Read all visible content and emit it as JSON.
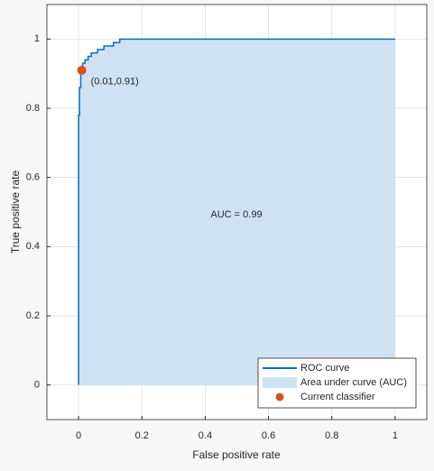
{
  "chart_data": {
    "type": "roc",
    "xlabel": "False positive rate",
    "ylabel": "True positive rate",
    "xlim": [
      -0.1,
      1.1
    ],
    "ylim": [
      -0.1,
      1.1
    ],
    "xticks": [
      0,
      0.2,
      0.4,
      0.6,
      0.8,
      1
    ],
    "yticks": [
      0,
      0.2,
      0.4,
      0.6,
      0.8,
      1
    ],
    "grid": true,
    "legend_position": "southeast",
    "series": [
      {
        "name": "ROC curve",
        "color": "#0072bd",
        "x": [
          0,
          0,
          0.003,
          0.003,
          0.007,
          0.007,
          0.013,
          0.013,
          0.02,
          0.02,
          0.03,
          0.03,
          0.04,
          0.04,
          0.06,
          0.06,
          0.08,
          0.08,
          0.11,
          0.11,
          0.13,
          0.13,
          1
        ],
        "values": [
          0,
          0.78,
          0.78,
          0.86,
          0.86,
          0.91,
          0.91,
          0.93,
          0.93,
          0.94,
          0.94,
          0.95,
          0.95,
          0.96,
          0.96,
          0.97,
          0.97,
          0.98,
          0.98,
          0.99,
          0.99,
          1,
          1
        ]
      }
    ],
    "area": {
      "name": "Area under curve (AUC)",
      "color": "#cfe2f3",
      "annotation": "AUC = 0.99"
    },
    "point": {
      "name": "Current classifier",
      "color": "#d95319",
      "x": 0.01,
      "y": 0.91,
      "label": "(0.01,0.91)"
    }
  }
}
